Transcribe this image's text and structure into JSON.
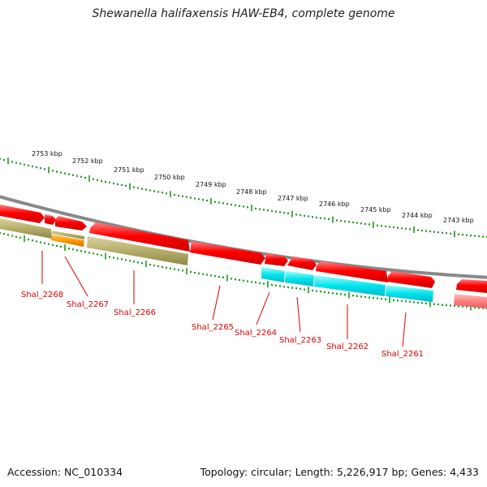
{
  "title": "Shewanella halifaxensis HAW-EB4, complete genome",
  "footer": {
    "accession": "Accession: NC_010334",
    "topology": "Topology: circular; Length: 5,226,917 bp; Genes: 4,433"
  },
  "colors": {
    "gene_forward": "#ff0000",
    "gene_reverse": "#ff7777",
    "cds_olive": "#b5ae6a",
    "cds_orange": "#ff9900",
    "cds_cyan": "#00e5ee",
    "backbone": "#888888",
    "ticks": "#1c9a1c",
    "labels": "#dd0000"
  },
  "scale_labels": [
    "2753 kbp",
    "2752 kbp",
    "2751 kbp",
    "2750 kbp",
    "2749 kbp",
    "2748 kbp",
    "2747 kbp",
    "2746 kbp",
    "2745 kbp",
    "2744 kbp",
    "2743 kbp"
  ],
  "gene_labels": [
    "Shal_2268",
    "Shal_2267",
    "Shal_2266",
    "Shal_2265",
    "Shal_2264",
    "Shal_2263",
    "Shal_2262",
    "Shal_2261"
  ]
}
